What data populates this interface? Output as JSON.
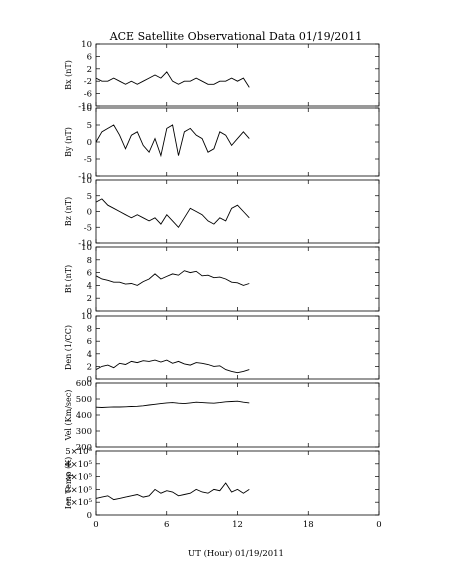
{
  "chart_data": {
    "type": "line",
    "title": "ACE Satellite Observational Data   01/19/2011",
    "xlabel": "UT (Hour)   01/19/2011",
    "xlim": [
      0,
      24
    ],
    "x_ticks": [
      "0",
      "6",
      "12",
      "18",
      "0"
    ],
    "grid": false,
    "panels": [
      {
        "ylabel": "Bx (nT)",
        "ylim": [
          -10,
          10
        ],
        "y_ticks": [
          "10",
          "6",
          "2",
          "-2",
          "-6",
          "-10"
        ],
        "series": [
          {
            "x": [
              0,
              0.5,
              1,
              1.5,
              2,
              2.5,
              3,
              3.5,
              4,
              4.5,
              5,
              5.5,
              6,
              6.5,
              7,
              7.5,
              8,
              8.5,
              9,
              9.5,
              10,
              10.5,
              11,
              11.5,
              12,
              12.5,
              13
            ],
            "y": [
              -1,
              -2,
              -2,
              -1,
              -2,
              -3,
              -2,
              -3,
              -2,
              -1,
              0,
              -1,
              1,
              -2,
              -3,
              -2,
              -2,
              -1,
              -2,
              -3,
              -3,
              -2,
              -2,
              -1,
              -2,
              -1,
              -4
            ]
          }
        ]
      },
      {
        "ylabel": "By (nT)",
        "ylim": [
          -10,
          10
        ],
        "y_ticks": [
          "10",
          "5",
          "0",
          "-5",
          "-10"
        ],
        "series": [
          {
            "x": [
              0,
              0.5,
              1,
              1.5,
              2,
              2.5,
              3,
              3.5,
              4,
              4.5,
              5,
              5.5,
              6,
              6.5,
              7,
              7.5,
              8,
              8.5,
              9,
              9.5,
              10,
              10.5,
              11,
              11.5,
              12,
              12.5,
              13
            ],
            "y": [
              0,
              3,
              4,
              5,
              2,
              -2,
              2,
              3,
              -1,
              -3,
              1,
              -4,
              4,
              5,
              -4,
              3,
              4,
              2,
              1,
              -3,
              -2,
              3,
              2,
              -1,
              1,
              3,
              1
            ]
          }
        ]
      },
      {
        "ylabel": "Bz (nT)",
        "ylim": [
          -10,
          10
        ],
        "y_ticks": [
          "10",
          "5",
          "0",
          "-5",
          "-10"
        ],
        "series": [
          {
            "x": [
              0,
              0.5,
              1,
              1.5,
              2,
              2.5,
              3,
              3.5,
              4,
              4.5,
              5,
              5.5,
              6,
              6.5,
              7,
              7.5,
              8,
              8.5,
              9,
              9.5,
              10,
              10.5,
              11,
              11.5,
              12,
              12.5,
              13
            ],
            "y": [
              3,
              4,
              2,
              1,
              0,
              -1,
              -2,
              -1,
              -2,
              -3,
              -2,
              -4,
              -1,
              -3,
              -5,
              -2,
              1,
              0,
              -1,
              -3,
              -4,
              -2,
              -3,
              1,
              2,
              0,
              -2
            ]
          }
        ]
      },
      {
        "ylabel": "Bt (nT)",
        "ylim": [
          0,
          10
        ],
        "y_ticks": [
          "10",
          "8",
          "6",
          "4",
          "2",
          "0"
        ],
        "series": [
          {
            "x": [
              0,
              0.5,
              1,
              1.5,
              2,
              2.5,
              3,
              3.5,
              4,
              4.5,
              5,
              5.5,
              6,
              6.5,
              7,
              7.5,
              8,
              8.5,
              9,
              9.5,
              10,
              10.5,
              11,
              11.5,
              12,
              12.5,
              13
            ],
            "y": [
              5.5,
              5,
              4.8,
              4.5,
              4.5,
              4.2,
              4.3,
              4,
              4.6,
              5,
              5.8,
              5,
              5.4,
              5.8,
              5.6,
              6.3,
              6,
              6.2,
              5.5,
              5.6,
              5.2,
              5.3,
              5,
              4.5,
              4.4,
              4,
              4.3
            ]
          }
        ]
      },
      {
        "ylabel": "Den (1/CC)",
        "ylim": [
          0,
          10
        ],
        "y_ticks": [
          "10",
          "8",
          "6",
          "4",
          "2",
          "0"
        ],
        "series": [
          {
            "x": [
              0,
              0.5,
              1,
              1.5,
              2,
              2.5,
              3,
              3.5,
              4,
              4.5,
              5,
              5.5,
              6,
              6.5,
              7,
              7.5,
              8,
              8.5,
              9,
              9.5,
              10,
              10.5,
              11,
              11.5,
              12,
              12.5,
              13
            ],
            "y": [
              1.5,
              2,
              2.2,
              1.8,
              2.5,
              2.3,
              2.8,
              2.6,
              2.9,
              2.8,
              3,
              2.7,
              3,
              2.5,
              2.8,
              2.4,
              2.2,
              2.6,
              2.5,
              2.3,
              2,
              2.1,
              1.5,
              1.2,
              1,
              1.2,
              1.5
            ]
          }
        ]
      },
      {
        "ylabel": "Vel (Km/sec)",
        "ylim": [
          200,
          650
        ],
        "y_ticks": [
          "600",
          "500",
          "400",
          "300",
          "200"
        ],
        "series": [
          {
            "x": [
              0,
              0.5,
              1,
              1.5,
              2,
              2.5,
              3,
              3.5,
              4,
              4.5,
              5,
              5.5,
              6,
              6.5,
              7,
              7.5,
              8,
              8.5,
              9,
              9.5,
              10,
              10.5,
              11,
              11.5,
              12,
              12.5,
              13
            ],
            "y": [
              480,
              478,
              480,
              482,
              481,
              483,
              485,
              486,
              490,
              495,
              500,
              505,
              510,
              512,
              508,
              505,
              510,
              515,
              512,
              510,
              508,
              512,
              518,
              520,
              522,
              515,
              510
            ]
          }
        ]
      },
      {
        "ylabel": "Ion Temp (K)",
        "ylim": [
          0,
          500000
        ],
        "y_ticks": [
          "5×10⁵",
          "4×10⁵",
          "3×10⁵",
          "2×10⁵",
          "1×10⁵",
          "0"
        ],
        "series": [
          {
            "x": [
              0,
              0.5,
              1,
              1.5,
              2,
              2.5,
              3,
              3.5,
              4,
              4.5,
              5,
              5.5,
              6,
              6.5,
              7,
              7.5,
              8,
              8.5,
              9,
              9.5,
              10,
              10.5,
              11,
              11.5,
              12,
              12.5,
              13
            ],
            "y": [
              130000,
              140000,
              150000,
              120000,
              130000,
              140000,
              150000,
              160000,
              140000,
              150000,
              200000,
              170000,
              190000,
              180000,
              150000,
              160000,
              170000,
              200000,
              180000,
              170000,
              200000,
              190000,
              250000,
              180000,
              200000,
              170000,
              200000
            ]
          }
        ]
      }
    ]
  }
}
